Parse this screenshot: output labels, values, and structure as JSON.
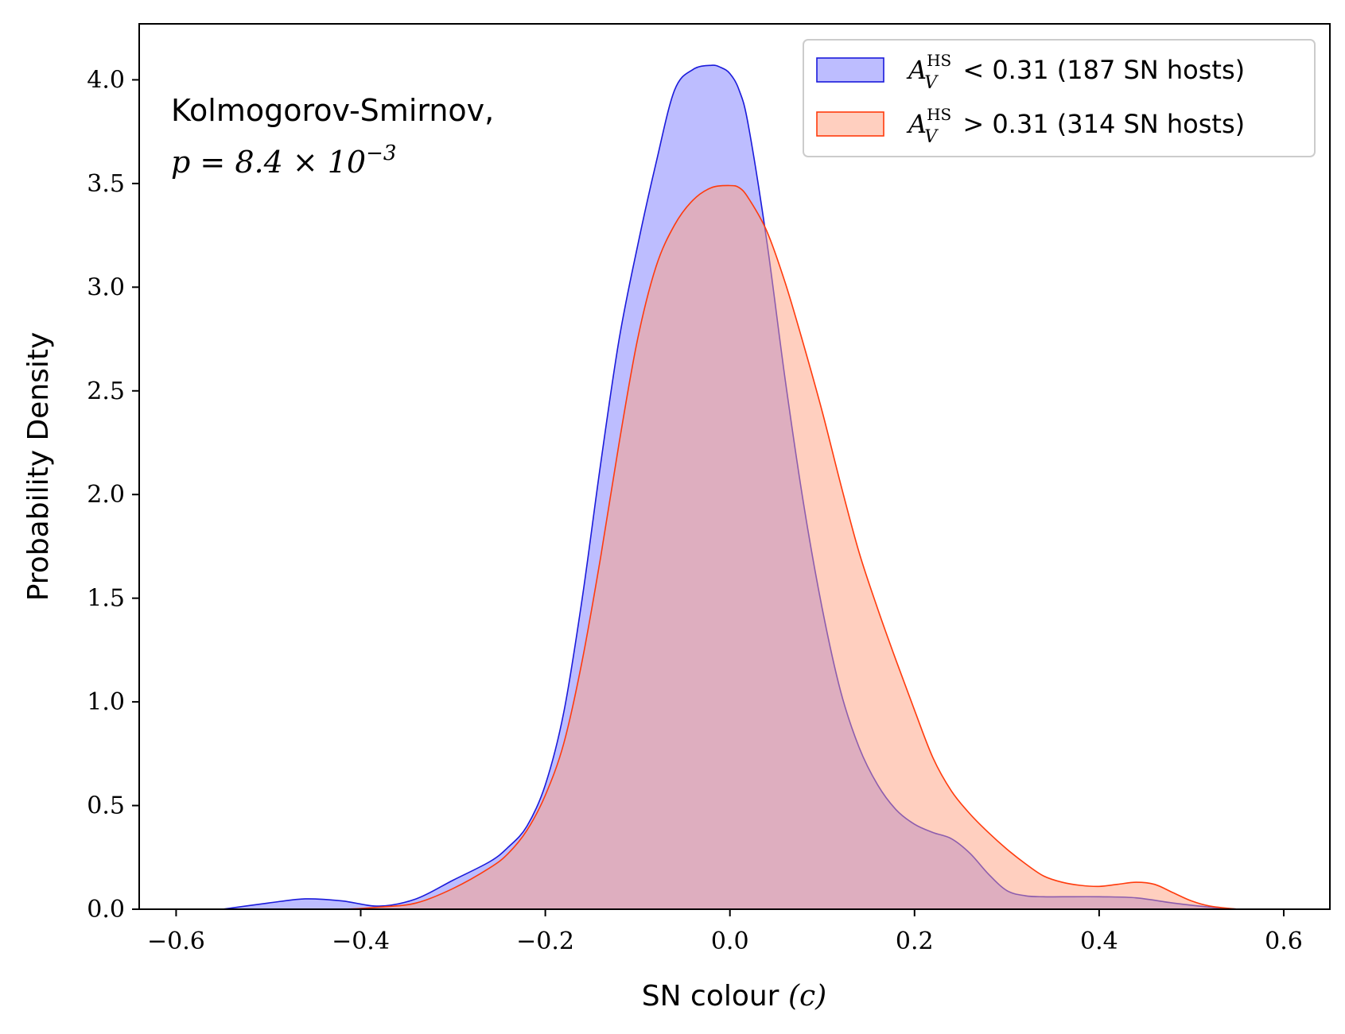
{
  "chart_data": {
    "type": "area",
    "xlabel": "SN colour (c)",
    "xlabel_text": "SN colour ",
    "xlabel_math": "(c)",
    "ylabel": "Probability Density",
    "xlim": [
      -0.64,
      0.65
    ],
    "ylim": [
      0,
      4.27
    ],
    "x_ticks": [
      -0.6,
      -0.4,
      -0.2,
      0.0,
      0.2,
      0.4,
      0.6
    ],
    "x_tick_labels": [
      "−0.6",
      "−0.4",
      "−0.2",
      "0.0",
      "0.2",
      "0.4",
      "0.6"
    ],
    "y_ticks": [
      0.0,
      0.5,
      1.0,
      1.5,
      2.0,
      2.5,
      3.0,
      3.5,
      4.0
    ],
    "y_tick_labels": [
      "0.0",
      "0.5",
      "1.0",
      "1.5",
      "2.0",
      "2.5",
      "3.0",
      "3.5",
      "4.0"
    ],
    "grid": false,
    "legend_placement": "top-right",
    "annotation": {
      "line1": "Kolmogorov-Smirnov,",
      "line2_prefix": "p = 8.4 × 10",
      "line2_exponent": "−3"
    },
    "series": [
      {
        "name": "A_V^HS < 0.31 (187 SN hosts)",
        "legend_symbol": "A",
        "legend_superscript": "HS",
        "legend_subscript": "V",
        "legend_rest": " < 0.31 (187 SN hosts)",
        "edge_color": "#1a1adb",
        "fill_color": "#7b7bff",
        "fill_opacity": 0.5,
        "x": [
          -0.55,
          -0.5,
          -0.46,
          -0.42,
          -0.38,
          -0.34,
          -0.3,
          -0.26,
          -0.24,
          -0.22,
          -0.2,
          -0.18,
          -0.16,
          -0.14,
          -0.12,
          -0.1,
          -0.08,
          -0.06,
          -0.04,
          -0.02,
          -0.01,
          0.0,
          0.01,
          0.02,
          0.04,
          0.06,
          0.08,
          0.1,
          0.12,
          0.14,
          0.16,
          0.18,
          0.2,
          0.22,
          0.24,
          0.26,
          0.28,
          0.3,
          0.32,
          0.34,
          0.36,
          0.4,
          0.44,
          0.48,
          0.52,
          0.55
        ],
        "y": [
          0.0,
          0.03,
          0.05,
          0.04,
          0.015,
          0.05,
          0.14,
          0.23,
          0.3,
          0.4,
          0.6,
          0.95,
          1.5,
          2.15,
          2.75,
          3.2,
          3.6,
          3.95,
          4.05,
          4.07,
          4.06,
          4.03,
          3.95,
          3.78,
          3.22,
          2.55,
          1.95,
          1.45,
          1.05,
          0.78,
          0.6,
          0.48,
          0.41,
          0.37,
          0.34,
          0.27,
          0.17,
          0.09,
          0.065,
          0.06,
          0.06,
          0.06,
          0.055,
          0.03,
          0.01,
          0.0
        ]
      },
      {
        "name": "A_V^HS > 0.31 (314 SN hosts)",
        "legend_symbol": "A",
        "legend_superscript": "HS",
        "legend_subscript": "V",
        "legend_rest": " > 0.31 (314 SN hosts)",
        "edge_color": "#ff3b0d",
        "fill_color": "#ff9f80",
        "fill_opacity": 0.5,
        "x": [
          -0.55,
          -0.5,
          -0.46,
          -0.42,
          -0.38,
          -0.34,
          -0.3,
          -0.26,
          -0.24,
          -0.22,
          -0.2,
          -0.18,
          -0.16,
          -0.14,
          -0.12,
          -0.1,
          -0.08,
          -0.06,
          -0.04,
          -0.02,
          0.0,
          0.01,
          0.02,
          0.04,
          0.06,
          0.08,
          0.1,
          0.12,
          0.14,
          0.16,
          0.18,
          0.2,
          0.22,
          0.24,
          0.26,
          0.28,
          0.3,
          0.32,
          0.34,
          0.36,
          0.38,
          0.4,
          0.42,
          0.44,
          0.46,
          0.48,
          0.5,
          0.52,
          0.55
        ],
        "y": [
          0.0,
          0.0,
          0.0,
          0.0,
          0.01,
          0.03,
          0.1,
          0.2,
          0.27,
          0.38,
          0.55,
          0.8,
          1.2,
          1.7,
          2.25,
          2.75,
          3.1,
          3.3,
          3.42,
          3.48,
          3.49,
          3.48,
          3.43,
          3.27,
          3.02,
          2.72,
          2.4,
          2.05,
          1.72,
          1.45,
          1.2,
          0.96,
          0.73,
          0.57,
          0.46,
          0.37,
          0.29,
          0.22,
          0.16,
          0.13,
          0.115,
          0.11,
          0.12,
          0.13,
          0.12,
          0.08,
          0.04,
          0.015,
          0.0
        ]
      }
    ]
  }
}
